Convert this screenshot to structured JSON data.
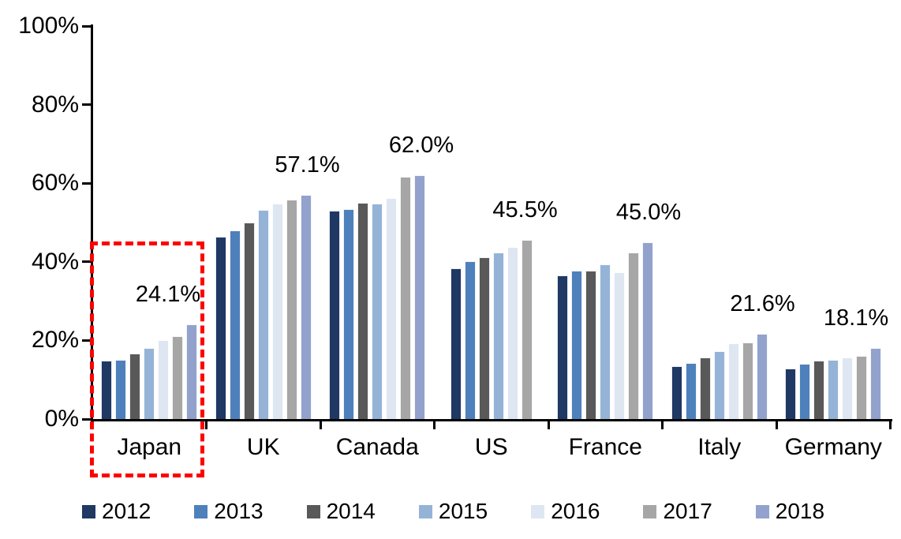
{
  "chart_data": {
    "type": "bar",
    "categories": [
      "Japan",
      "UK",
      "Canada",
      "US",
      "France",
      "Italy",
      "Germany"
    ],
    "series": [
      {
        "name": "2012",
        "color": "#1F3864",
        "values": [
          14.9,
          46.4,
          53.1,
          38.3,
          36.5,
          13.4,
          12.8
        ]
      },
      {
        "name": "2013",
        "color": "#4E80BC",
        "values": [
          15.1,
          48.0,
          53.5,
          40.1,
          37.7,
          14.3,
          14.0
        ]
      },
      {
        "name": "2014",
        "color": "#595959",
        "values": [
          16.6,
          50.0,
          55.1,
          41.2,
          37.7,
          15.7,
          14.8
        ]
      },
      {
        "name": "2015",
        "color": "#95B3D7",
        "values": [
          18.0,
          53.2,
          54.9,
          42.3,
          39.3,
          17.2,
          15.0
        ]
      },
      {
        "name": "2016",
        "color": "#DEE6F2",
        "values": [
          20.0,
          54.9,
          56.2,
          43.7,
          37.4,
          19.3,
          15.6
        ]
      },
      {
        "name": "2017",
        "color": "#A6A6A6",
        "values": [
          21.1,
          55.9,
          61.6,
          45.5,
          42.4,
          19.5,
          16.1
        ]
      },
      {
        "name": "2018",
        "color": "#93A2CD",
        "values": [
          24.1,
          57.1,
          62.0,
          null,
          45.0,
          21.6,
          18.1
        ]
      }
    ],
    "data_labels": [
      "24.1%",
      "57.1%",
      "62.0%",
      "45.5%",
      "45.0%",
      "21.6%",
      "18.1%"
    ],
    "ylim": [
      0,
      100
    ],
    "yticks": [
      "100%",
      "80%",
      "60%",
      "40%",
      "20%",
      "0%"
    ],
    "grid": false,
    "legend_position": "bottom",
    "legend_entries": [
      "2012",
      "2013",
      "2014",
      "2015",
      "2016",
      "2017",
      "2018"
    ],
    "highlight": {
      "category": "Japan",
      "style": "dashed-box",
      "color": "#FE0000"
    }
  }
}
